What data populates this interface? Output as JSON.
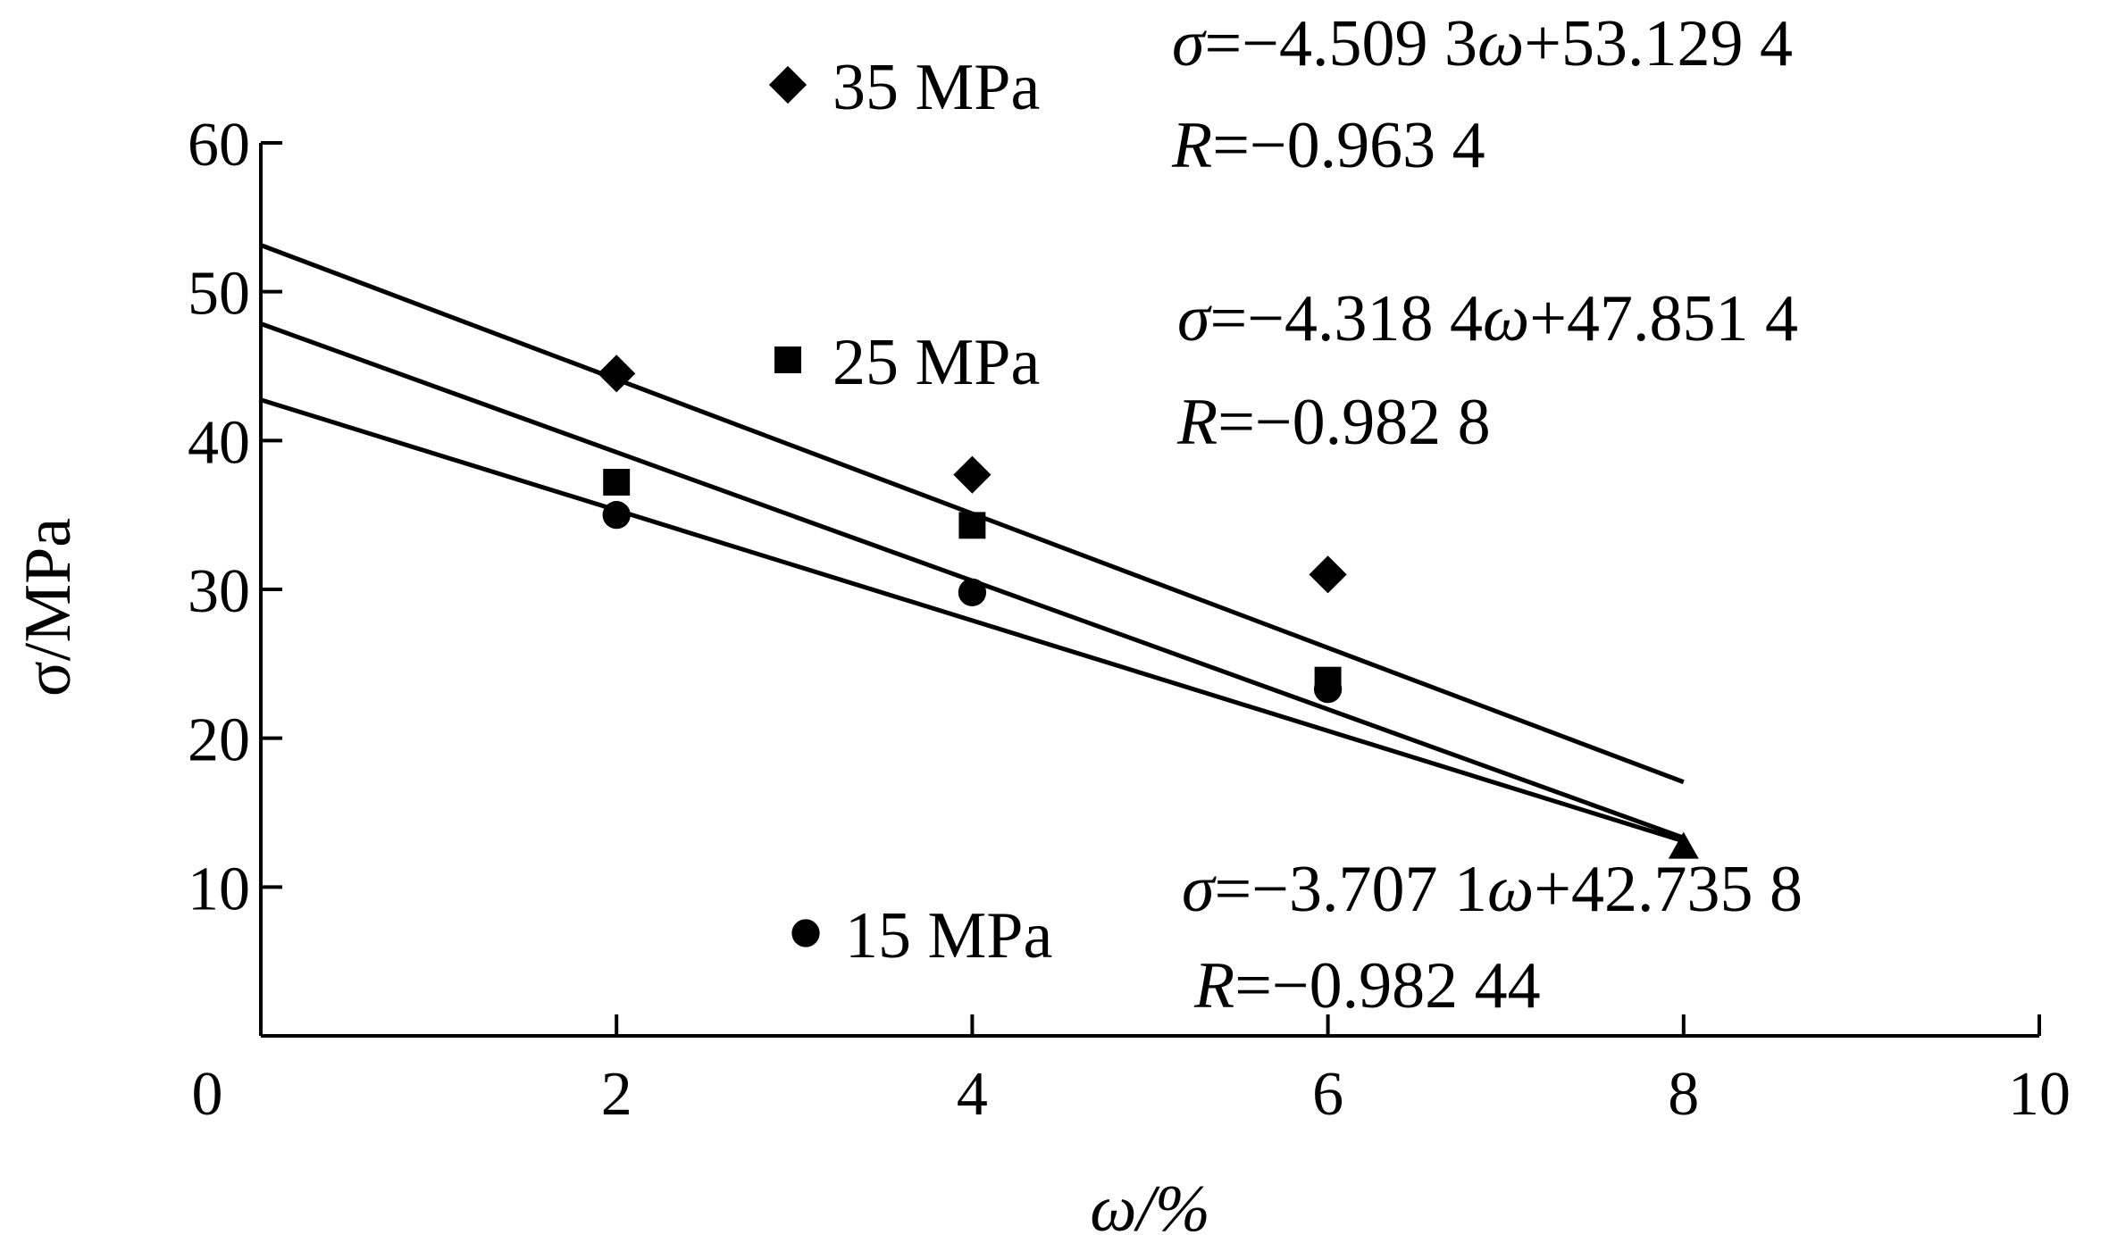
{
  "chart_data": {
    "type": "scatter",
    "title": "",
    "xlabel": "ω/%",
    "ylabel": "σ/MPa",
    "xlim": [
      0,
      10
    ],
    "ylim": [
      0,
      60
    ],
    "xticks": [
      0,
      2,
      4,
      6,
      8,
      10
    ],
    "yticks": [
      10,
      20,
      30,
      40,
      50,
      60
    ],
    "grid": false,
    "legend_placement": "inside, beside each fit equation",
    "series": [
      {
        "name": "35 MPa",
        "marker": "diamond",
        "x": [
          2,
          4,
          6,
          8
        ],
        "y": [
          44.5,
          37.7,
          31.0,
          12.5
        ],
        "fit": {
          "slope": -4.5093,
          "intercept": 53.1294,
          "x_range": [
            0,
            8
          ]
        },
        "equation_parts": [
          "σ",
          "=−4.509 3",
          "ω",
          "+53.129 4"
        ],
        "r_parts": [
          "R",
          "=−0.963 4"
        ]
      },
      {
        "name": "25 MPa",
        "marker": "square",
        "x": [
          2,
          4,
          6,
          8
        ],
        "y": [
          37.2,
          34.3,
          23.9,
          12.5
        ],
        "fit": {
          "slope": -4.3184,
          "intercept": 47.8514,
          "x_range": [
            0,
            8
          ]
        },
        "equation_parts": [
          "σ",
          "=−4.318 4",
          "ω",
          "+47.851 4"
        ],
        "r_parts": [
          "R",
          "=−0.982 8"
        ]
      },
      {
        "name": "15 MPa",
        "marker": "circle",
        "x": [
          2,
          4,
          6,
          8
        ],
        "y": [
          35.0,
          29.8,
          23.3,
          12.5
        ],
        "fit": {
          "slope": -3.7071,
          "intercept": 42.7358,
          "x_range": [
            0,
            8
          ]
        },
        "equation_parts": [
          "σ",
          "=−3.707 1",
          "ω",
          "+42.735 8"
        ],
        "r_parts": [
          "R",
          "=−0.982 44"
        ]
      }
    ]
  }
}
